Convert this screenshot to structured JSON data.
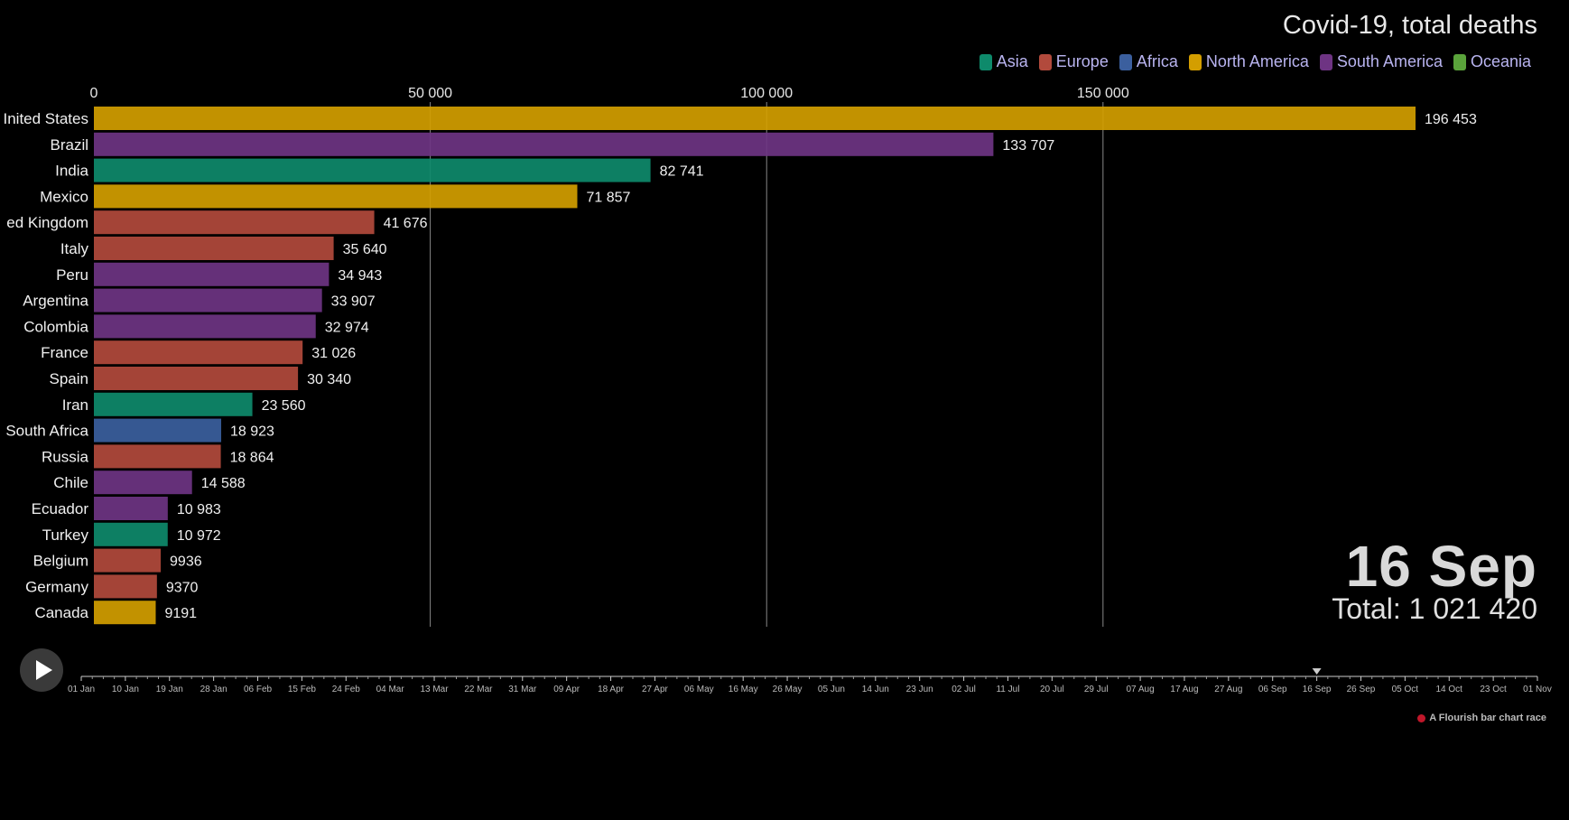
{
  "title": "Covid-19, total deaths",
  "legend": [
    {
      "label": "Asia",
      "color": "#0e8a6b"
    },
    {
      "label": "Europe",
      "color": "#b24a3c"
    },
    {
      "label": "Africa",
      "color": "#3b5f9e"
    },
    {
      "label": "North America",
      "color": "#d39e00"
    },
    {
      "label": "South America",
      "color": "#6e3483"
    },
    {
      "label": "Oceania",
      "color": "#5aa33b"
    }
  ],
  "current": {
    "date_label": "16 Sep",
    "total_text": "Total: 1 021 420"
  },
  "chart_data": {
    "type": "bar",
    "orientation": "horizontal",
    "title": "Covid-19, total deaths",
    "xlim": [
      0,
      196453
    ],
    "x_ticks": [
      {
        "value": 0,
        "label": "0"
      },
      {
        "value": 50000,
        "label": "50 000"
      },
      {
        "value": 100000,
        "label": "100 000"
      },
      {
        "value": 150000,
        "label": "150 000"
      }
    ],
    "grid": true,
    "legend_position": "top-right",
    "categories": [
      "Inited States",
      "Brazil",
      "India",
      "Mexico",
      "ed Kingdom",
      "Italy",
      "Peru",
      "Argentina",
      "Colombia",
      "France",
      "Spain",
      "Iran",
      "South Africa",
      "Russia",
      "Chile",
      "Ecuador",
      "Turkey",
      "Belgium",
      "Germany",
      "Canada"
    ],
    "values": [
      196453,
      133707,
      82741,
      71857,
      41676,
      35640,
      34943,
      33907,
      32974,
      31026,
      30340,
      23560,
      18923,
      18864,
      14588,
      10983,
      10972,
      9936,
      9370,
      9191
    ],
    "value_labels": [
      "196 453",
      "133 707",
      "82 741",
      "71 857",
      "41 676",
      "35 640",
      "34 943",
      "33 907",
      "32 974",
      "31 026",
      "30 340",
      "23 560",
      "18 923",
      "18 864",
      "14 588",
      "10 983",
      "10 972",
      "9936",
      "9370",
      "9191"
    ],
    "regions": [
      "North America",
      "South America",
      "Asia",
      "North America",
      "Europe",
      "Europe",
      "South America",
      "South America",
      "South America",
      "Europe",
      "Europe",
      "Asia",
      "Africa",
      "Europe",
      "South America",
      "South America",
      "Asia",
      "Europe",
      "Europe",
      "North America"
    ]
  },
  "timeline": {
    "labels": [
      "01 Jan",
      "10 Jan",
      "19 Jan",
      "28 Jan",
      "06 Feb",
      "15 Feb",
      "24 Feb",
      "04 Mar",
      "13 Mar",
      "22 Mar",
      "31 Mar",
      "09 Apr",
      "18 Apr",
      "27 Apr",
      "06 May",
      "16 May",
      "26 May",
      "05 Jun",
      "14 Jun",
      "23 Jun",
      "02 Jul",
      "11 Jul",
      "20 Jul",
      "29 Jul",
      "07 Aug",
      "17 Aug",
      "27 Aug",
      "06 Sep",
      "16 Sep",
      "26 Sep",
      "05 Oct",
      "14 Oct",
      "23 Oct",
      "01 Nov"
    ],
    "current_label": "16 Sep"
  },
  "credit": "A Flourish bar chart race",
  "controls": {
    "play_icon": "play-icon"
  }
}
